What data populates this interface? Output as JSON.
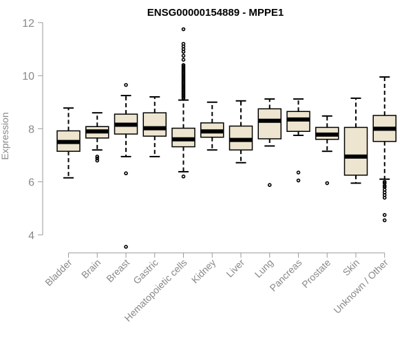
{
  "chart_data": {
    "type": "boxplot",
    "title": "ENSG00000154889 - MPPE1",
    "xlabel": "",
    "ylabel": "Expression",
    "ylim": [
      3.4,
      12.1
    ],
    "yticks": [
      4,
      6,
      8,
      10,
      12
    ],
    "grid": false,
    "colors": {
      "box_fill": "#ede5cf",
      "stroke": "#000000",
      "axis_text": "#888888",
      "title": "#000000"
    },
    "categories": [
      "Bladder",
      "Brain",
      "Breast",
      "Gastric",
      "Hematopoietic cells",
      "Kidney",
      "Liver",
      "Lung",
      "Pancreas",
      "Prostate",
      "Skin",
      "Unknown / Other"
    ],
    "boxes": [
      {
        "category": "Bladder",
        "whisker_low": 6.15,
        "q1": 7.15,
        "median": 7.5,
        "q3": 7.92,
        "whisker_high": 8.78,
        "outliers": []
      },
      {
        "category": "Brain",
        "whisker_low": 7.2,
        "q1": 7.65,
        "median": 7.9,
        "q3": 8.08,
        "whisker_high": 8.6,
        "outliers": [
          6.8,
          6.88,
          6.95
        ]
      },
      {
        "category": "Breast",
        "whisker_low": 6.95,
        "q1": 7.8,
        "median": 8.15,
        "q3": 8.55,
        "whisker_high": 9.25,
        "outliers": [
          3.55,
          6.32,
          9.65
        ]
      },
      {
        "category": "Gastric",
        "whisker_low": 6.95,
        "q1": 7.72,
        "median": 8.02,
        "q3": 8.6,
        "whisker_high": 9.2,
        "outliers": []
      },
      {
        "category": "Hematopoietic cells",
        "whisker_low": 6.38,
        "q1": 7.32,
        "median": 7.6,
        "q3": 8.02,
        "whisker_high": 9.08,
        "outliers": [
          6.2,
          9.15,
          9.2,
          9.25,
          9.3,
          9.35,
          9.4,
          9.45,
          9.5,
          9.55,
          9.6,
          9.65,
          9.7,
          9.75,
          9.8,
          9.85,
          9.9,
          9.95,
          10.0,
          10.05,
          10.1,
          10.15,
          10.2,
          10.25,
          10.3,
          10.35,
          10.4,
          10.6,
          10.75,
          10.9,
          11.0,
          11.1,
          11.2,
          11.75
        ]
      },
      {
        "category": "Kidney",
        "whisker_low": 7.2,
        "q1": 7.68,
        "median": 7.9,
        "q3": 8.22,
        "whisker_high": 9.0,
        "outliers": []
      },
      {
        "category": "Liver",
        "whisker_low": 6.72,
        "q1": 7.2,
        "median": 7.58,
        "q3": 8.1,
        "whisker_high": 9.05,
        "outliers": []
      },
      {
        "category": "Lung",
        "whisker_low": 7.35,
        "q1": 7.62,
        "median": 8.3,
        "q3": 8.75,
        "whisker_high": 9.12,
        "outliers": [
          5.88
        ]
      },
      {
        "category": "Pancreas",
        "whisker_low": 7.75,
        "q1": 7.9,
        "median": 8.35,
        "q3": 8.65,
        "whisker_high": 9.12,
        "outliers": [
          6.05,
          6.35
        ]
      },
      {
        "category": "Prostate",
        "whisker_low": 7.15,
        "q1": 7.6,
        "median": 7.78,
        "q3": 8.05,
        "whisker_high": 8.48,
        "outliers": [
          5.95
        ]
      },
      {
        "category": "Skin",
        "whisker_low": 5.95,
        "q1": 6.25,
        "median": 6.95,
        "q3": 8.05,
        "whisker_high": 9.15,
        "outliers": []
      },
      {
        "category": "Unknown / Other",
        "whisker_low": 6.1,
        "q1": 7.52,
        "median": 8.0,
        "q3": 8.5,
        "whisker_high": 9.95,
        "outliers": [
          4.55,
          4.75,
          5.4,
          5.5,
          5.6,
          5.7,
          5.8,
          5.85,
          5.95,
          6.0
        ]
      }
    ]
  }
}
